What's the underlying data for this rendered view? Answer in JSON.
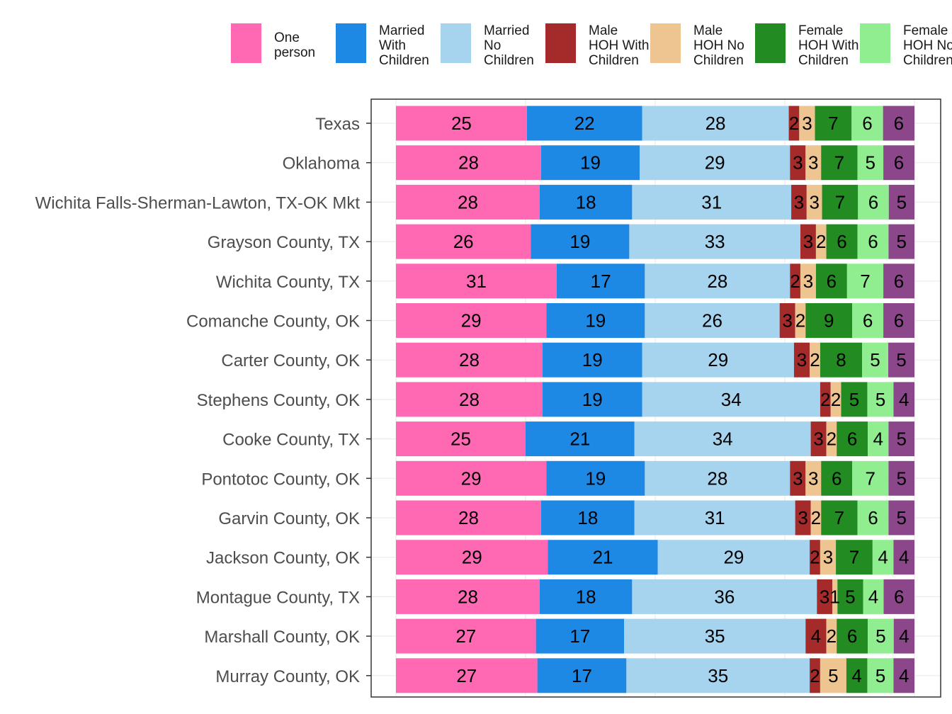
{
  "chart_data": {
    "type": "bar",
    "orientation": "horizontal",
    "stacked": true,
    "legend_position": "top",
    "grid": true,
    "xlabel": "",
    "ylabel": "",
    "categories": [
      "Texas",
      "Oklahoma",
      "Wichita Falls-Sherman-Lawton, TX-OK Mkt",
      "Grayson County, TX",
      "Wichita County, TX",
      "Comanche County, OK",
      "Carter County, OK",
      "Stephens County, OK",
      "Cooke County, TX",
      "Pontotoc County, OK",
      "Garvin County, OK",
      "Jackson County, OK",
      "Montague County, TX",
      "Marshall County, OK",
      "Murray County, OK"
    ],
    "series": [
      {
        "name": "One person",
        "legend_lines": [
          "One",
          "person"
        ],
        "color": "#FF69B4",
        "values": [
          25,
          28,
          28,
          26,
          31,
          29,
          28,
          28,
          25,
          29,
          28,
          29,
          28,
          27,
          27
        ]
      },
      {
        "name": "Married With Children",
        "legend_lines": [
          "Married",
          "With",
          "Children"
        ],
        "color": "#1E88E5",
        "values": [
          22,
          19,
          18,
          19,
          17,
          19,
          19,
          19,
          21,
          19,
          18,
          21,
          18,
          17,
          17
        ]
      },
      {
        "name": "Married No Children",
        "legend_lines": [
          "Married",
          "No",
          "Children"
        ],
        "color": "#A6D3EE",
        "values": [
          28,
          29,
          31,
          33,
          28,
          26,
          29,
          34,
          34,
          28,
          31,
          29,
          36,
          35,
          35
        ]
      },
      {
        "name": "Male HOH With Children",
        "legend_lines": [
          "Male",
          "HOH With",
          "Children"
        ],
        "color": "#A52A2A",
        "values": [
          2,
          3,
          3,
          3,
          2,
          3,
          3,
          2,
          3,
          3,
          3,
          2,
          3,
          4,
          2
        ]
      },
      {
        "name": "Male HOH No Children",
        "legend_lines": [
          "Male",
          "HOH No",
          "Children"
        ],
        "color": "#EEC591",
        "values": [
          3,
          3,
          3,
          2,
          3,
          2,
          2,
          2,
          2,
          3,
          2,
          3,
          1,
          2,
          5
        ]
      },
      {
        "name": "Female HOH With Children",
        "legend_lines": [
          "Female",
          "HOH With",
          "Children"
        ],
        "color": "#228B22",
        "values": [
          7,
          7,
          7,
          6,
          6,
          9,
          8,
          5,
          6,
          6,
          7,
          7,
          5,
          6,
          4
        ]
      },
      {
        "name": "Female HOH No Children",
        "legend_lines": [
          "Female",
          "HOH No",
          "Children"
        ],
        "color": "#90EE90",
        "values": [
          6,
          5,
          6,
          6,
          7,
          6,
          5,
          5,
          4,
          7,
          6,
          4,
          4,
          5,
          5
        ]
      },
      {
        "name": "",
        "legend_lines": [],
        "color": "#8B4789",
        "values": [
          6,
          6,
          5,
          5,
          6,
          6,
          5,
          4,
          5,
          5,
          5,
          4,
          6,
          4,
          4
        ]
      }
    ]
  }
}
